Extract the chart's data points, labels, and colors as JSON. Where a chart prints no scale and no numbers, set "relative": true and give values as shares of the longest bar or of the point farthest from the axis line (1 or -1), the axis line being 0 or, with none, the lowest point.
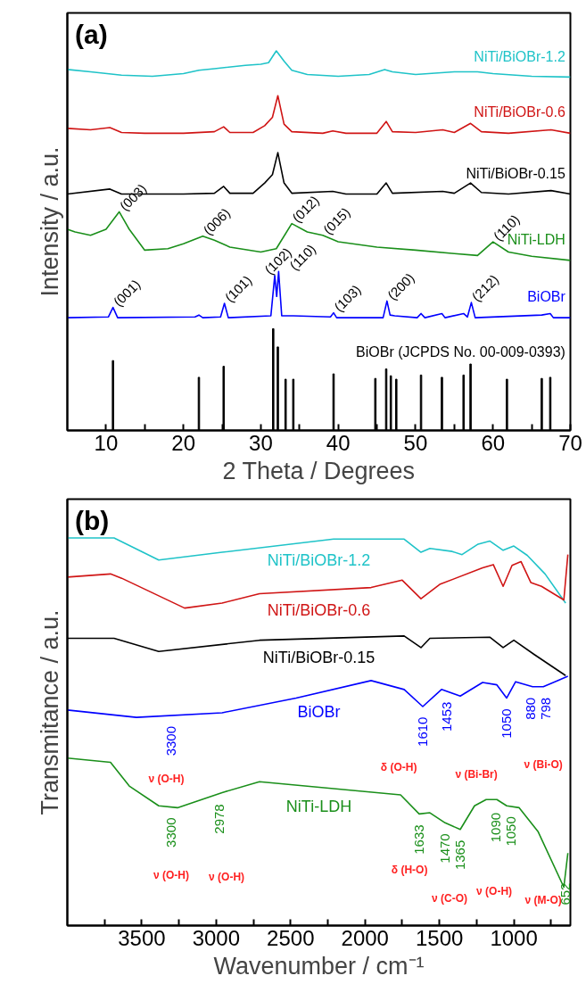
{
  "chart_data": [
    {
      "type": "line",
      "title": "(a)",
      "xlabel": "2 Theta / Degrees",
      "ylabel": "Intensity / a.u.",
      "relative": true,
      "xlim": [
        5,
        70
      ],
      "xticks": [
        10,
        {
          "value": 15,
          "label": null
        },
        20,
        {
          "value": 25,
          "label": null
        },
        30,
        {
          "value": 35,
          "label": null
        },
        40,
        {
          "value": 45,
          "label": null
        },
        50,
        {
          "value": 55,
          "label": null
        },
        60,
        {
          "value": 65,
          "label": null
        },
        70
      ],
      "series": [
        {
          "name": "NiTi/BiOBr-1.2",
          "color": "#1fc3c8",
          "x": [
            5,
            8,
            12,
            16,
            20,
            22,
            24,
            28,
            30,
            31,
            32,
            33,
            34,
            36,
            40,
            44,
            46,
            47,
            50,
            55,
            58,
            60,
            65,
            70
          ],
          "values": [
            0.951,
            0.945,
            0.936,
            0.933,
            0.94,
            0.949,
            0.953,
            0.962,
            0.965,
            0.969,
            1.0,
            0.973,
            0.949,
            0.938,
            0.933,
            0.938,
            0.951,
            0.945,
            0.938,
            0.945,
            0.945,
            0.94,
            0.933,
            0.931
          ]
        },
        {
          "name": "NiTi/BiOBr-0.6",
          "color": "#d01515",
          "x": [
            5,
            8,
            10.5,
            12,
            15,
            20,
            24,
            25.2,
            26,
            29,
            30.5,
            31.5,
            32.2,
            33,
            34,
            38,
            39.3,
            41,
            45,
            46.2,
            47,
            50,
            53.5,
            55,
            57.1,
            58.5,
            62,
            67.5,
            70
          ],
          "values": [
            0.796,
            0.792,
            0.798,
            0.785,
            0.783,
            0.783,
            0.787,
            0.8,
            0.785,
            0.785,
            0.803,
            0.825,
            0.882,
            0.807,
            0.787,
            0.783,
            0.789,
            0.783,
            0.783,
            0.814,
            0.787,
            0.785,
            0.792,
            0.785,
            0.809,
            0.787,
            0.783,
            0.792,
            0.783
          ]
        },
        {
          "name": "NiTi/BiOBr-0.15",
          "color": "#000000",
          "x": [
            5,
            10.5,
            12,
            20,
            24,
            25.2,
            26,
            29,
            30.5,
            31.5,
            32.2,
            33,
            34,
            39.3,
            41,
            45,
            46.2,
            47,
            53.5,
            55,
            57.1,
            58.5,
            62,
            67.5,
            70
          ],
          "values": [
            0.623,
            0.636,
            0.623,
            0.623,
            0.625,
            0.643,
            0.625,
            0.625,
            0.652,
            0.674,
            0.732,
            0.652,
            0.625,
            0.63,
            0.623,
            0.623,
            0.652,
            0.625,
            0.63,
            0.625,
            0.652,
            0.627,
            0.623,
            0.632,
            0.623
          ]
        },
        {
          "name": "NiTi-LDH",
          "color": "#1a8f1a",
          "x": [
            5,
            6,
            8,
            10,
            11.7,
            13,
            15,
            18,
            20,
            22.5,
            24,
            26,
            30,
            32,
            34,
            36,
            38,
            40,
            45,
            50,
            55,
            58,
            60,
            62,
            65,
            70
          ],
          "values": [
            0.53,
            0.523,
            0.514,
            0.53,
            0.576,
            0.53,
            0.475,
            0.479,
            0.492,
            0.512,
            0.501,
            0.483,
            0.47,
            0.479,
            0.545,
            0.523,
            0.514,
            0.497,
            0.483,
            0.475,
            0.466,
            0.461,
            0.497,
            0.47,
            0.459,
            0.448
          ]
        },
        {
          "name": "BiOBr",
          "color": "#0000ff",
          "x": [
            5,
            10.3,
            10.9,
            11.5,
            21.5,
            22,
            22.5,
            24.8,
            25.3,
            25.8,
            31.3,
            31.8,
            32.05,
            32.3,
            32.7,
            34.2,
            39,
            39.4,
            39.8,
            45.8,
            46.3,
            46.7,
            47.3,
            50.2,
            50.7,
            51.2,
            53.4,
            53.8,
            56.2,
            56.7,
            57.2,
            57.7,
            66.3,
            67.4,
            67.8,
            70
          ],
          "values": [
            0.297,
            0.299,
            0.324,
            0.297,
            0.299,
            0.304,
            0.297,
            0.299,
            0.335,
            0.297,
            0.302,
            0.408,
            0.353,
            0.419,
            0.302,
            0.302,
            0.299,
            0.31,
            0.297,
            0.297,
            0.341,
            0.304,
            0.302,
            0.297,
            0.308,
            0.297,
            0.308,
            0.297,
            0.308,
            0.299,
            0.337,
            0.297,
            0.304,
            0.308,
            0.297,
            0.297
          ]
        },
        {
          "name": "BiOBr (JCPDS No. 00-009-0393)",
          "color": "#000000",
          "type": "bar",
          "x": [
            10.9,
            22,
            25.2,
            31.6,
            32.2,
            33.2,
            34.2,
            39.4,
            44.8,
            46.2,
            46.8,
            47.5,
            50.7,
            53.4,
            56.2,
            57.1,
            61.8,
            66.3,
            67.4
          ],
          "values": [
            0.184,
            0.14,
            0.169,
            0.268,
            0.22,
            0.135,
            0.135,
            0.149,
            0.137,
            0.162,
            0.144,
            0.135,
            0.146,
            0.14,
            0.146,
            0.175,
            0.135,
            0.137,
            0.14
          ]
        }
      ],
      "annotations": [
        {
          "text": "(003)",
          "x": 11.7,
          "y": 0.576
        },
        {
          "text": "(006)",
          "x": 22.5,
          "y": 0.512
        },
        {
          "text": "(012)",
          "x": 34,
          "y": 0.545
        },
        {
          "text": "(015)",
          "x": 38,
          "y": 0.514
        },
        {
          "text": "(110)",
          "x": 60,
          "y": 0.497
        },
        {
          "text": "(001)",
          "x": 10.9,
          "y": 0.324
        },
        {
          "text": "(101)",
          "x": 25.3,
          "y": 0.335
        },
        {
          "text": "(102)",
          "x": 31.8,
          "y": 0.408
        },
        {
          "text": "(110)",
          "x": 32.3,
          "y": 0.419
        },
        {
          "text": "(103)",
          "x": 39.4,
          "y": 0.31
        },
        {
          "text": "(200)",
          "x": 46.3,
          "y": 0.341
        },
        {
          "text": "(212)",
          "x": 57.2,
          "y": 0.337
        }
      ]
    },
    {
      "type": "line",
      "title": "(b)",
      "xlabel": "Wavenumber / cm⁻¹",
      "ylabel": "Transmitance / a.u.",
      "relative": true,
      "xlim": [
        4000,
        620
      ],
      "xticks": [
        {
          "value": 3750,
          "label": null
        },
        3500,
        {
          "value": 3250,
          "label": null
        },
        3000,
        {
          "value": 2750,
          "label": null
        },
        2500,
        {
          "value": 2250,
          "label": null
        },
        2000,
        {
          "value": 1750,
          "label": null
        },
        1500,
        {
          "value": 1250,
          "label": null
        },
        1000,
        {
          "value": 750,
          "label": null
        }
      ],
      "series": [
        {
          "name": "NiTi/BiOBr-1.2",
          "color": "#1fc3c8",
          "x": [
            4000,
            3686,
            3386,
            2960,
            2211,
            1737,
            1624,
            1564,
            1414,
            1348,
            1240,
            1162,
            1072,
            1000,
            910,
            790,
            652
          ],
          "values": [
            1.0,
            1.0,
            0.943,
            0.963,
            0.997,
            0.997,
            0.963,
            0.973,
            0.965,
            0.957,
            0.984,
            0.992,
            0.968,
            0.979,
            0.955,
            0.907,
            0.832
          ]
        },
        {
          "name": "NiTi/BiOBr-0.6",
          "color": "#d01515",
          "x": [
            4000,
            3710,
            3635,
            3212,
            2960,
            2709,
            1959,
            1750,
            1624,
            1498,
            1210,
            1138,
            1072,
            1012,
            952,
            886,
            814,
            664,
            637
          ],
          "values": [
            0.899,
            0.907,
            0.896,
            0.819,
            0.832,
            0.856,
            0.872,
            0.891,
            0.843,
            0.88,
            0.923,
            0.931,
            0.875,
            0.929,
            0.939,
            0.885,
            0.875,
            0.84,
            0.957
          ]
        },
        {
          "name": "NiTi/BiOBr-0.15",
          "color": "#000000",
          "x": [
            4000,
            3686,
            3386,
            2709,
            1737,
            1624,
            1564,
            1162,
            1072,
            1000,
            862,
            652
          ],
          "values": [
            0.741,
            0.741,
            0.707,
            0.736,
            0.747,
            0.717,
            0.741,
            0.744,
            0.717,
            0.736,
            0.699,
            0.645
          ]
        },
        {
          "name": "BiOBr",
          "color": "#0000ff",
          "x": [
            4000,
            3536,
            2960,
            2463,
            1959,
            1737,
            1612,
            1486,
            1360,
            1210,
            1114,
            1048,
            988,
            874,
            802,
            637
          ],
          "values": [
            0.556,
            0.537,
            0.549,
            0.587,
            0.632,
            0.609,
            0.565,
            0.609,
            0.592,
            0.627,
            0.621,
            0.587,
            0.629,
            0.616,
            0.616,
            0.643
          ]
        },
        {
          "name": "NiTi-LDH",
          "color": "#1a8f1a",
          "x": [
            4000,
            3710,
            3584,
            3386,
            3260,
            2960,
            2709,
            1761,
            1636,
            1564,
            1462,
            1360,
            1264,
            1186,
            1114,
            1048,
            964,
            838,
            664,
            637
          ],
          "values": [
            0.432,
            0.421,
            0.36,
            0.309,
            0.304,
            0.343,
            0.371,
            0.337,
            0.288,
            0.291,
            0.265,
            0.248,
            0.309,
            0.325,
            0.325,
            0.309,
            0.304,
            0.243,
            0.099,
            0.187
          ]
        }
      ],
      "annotations": [
        {
          "text": "3300",
          "x": 3300,
          "y": 0.542
        },
        {
          "text": "1610",
          "x": 1610,
          "y": 0.566
        },
        {
          "text": "1453",
          "x": 1453,
          "y": 0.605
        },
        {
          "text": "1050",
          "x": 1048,
          "y": 0.587
        },
        {
          "text": "880",
          "x": 874,
          "y": 0.616
        },
        {
          "text": "798",
          "x": 802,
          "y": 0.616
        },
        {
          "text": "3300",
          "x": 3300,
          "y": 0.306
        },
        {
          "text": "2978",
          "x": 2978,
          "y": 0.341
        },
        {
          "text": "1633",
          "x": 1636,
          "y": 0.288
        },
        {
          "text": "1470",
          "x": 1462,
          "y": 0.265
        },
        {
          "text": "1365",
          "x": 1360,
          "y": 0.248
        },
        {
          "text": "1090",
          "x": 1090,
          "y": 0.319
        },
        {
          "text": "1050",
          "x": 1048,
          "y": 0.309
        },
        {
          "text": "652",
          "x": 652,
          "y": 0.138
        },
        "ν (O-H)",
        "δ (O-H)",
        "ν (Bi-Br)",
        "ν (Bi-O)",
        "ν (O-H)",
        "ν (O-H)",
        "δ (H-O)",
        "ν (C-O)",
        "ν (O-H)",
        "ν (M-O)"
      ]
    }
  ]
}
